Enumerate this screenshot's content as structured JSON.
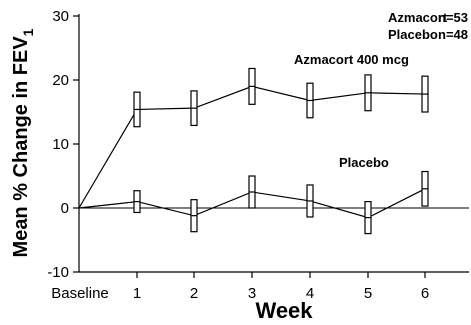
{
  "chart_data": {
    "type": "line",
    "xlabel": "Week",
    "ylabel_main": "Mean % Change in FEV",
    "ylabel_sub": "1",
    "categories": [
      "Baseline",
      "1",
      "2",
      "3",
      "4",
      "5",
      "6"
    ],
    "ylim": [
      -10,
      30
    ],
    "yticks": [
      -10,
      0,
      10,
      20,
      30
    ],
    "legend": [
      {
        "label": "Azmacort",
        "n": "n=53"
      },
      {
        "label": "Placebo",
        "n": "n=48"
      }
    ],
    "series": [
      {
        "name": "Azmacort 400 mcg",
        "values": [
          0,
          15.4,
          15.6,
          19.0,
          16.8,
          18.0,
          17.8
        ],
        "errors": [
          0,
          2.7,
          2.7,
          2.8,
          2.7,
          2.8,
          2.8
        ]
      },
      {
        "name": "Placebo",
        "values": [
          0,
          1.0,
          -1.2,
          2.5,
          1.1,
          -1.5,
          3.0
        ],
        "errors": [
          0,
          1.7,
          2.5,
          2.5,
          2.5,
          2.5,
          2.7
        ]
      }
    ],
    "zero_line": true,
    "grid": false
  }
}
